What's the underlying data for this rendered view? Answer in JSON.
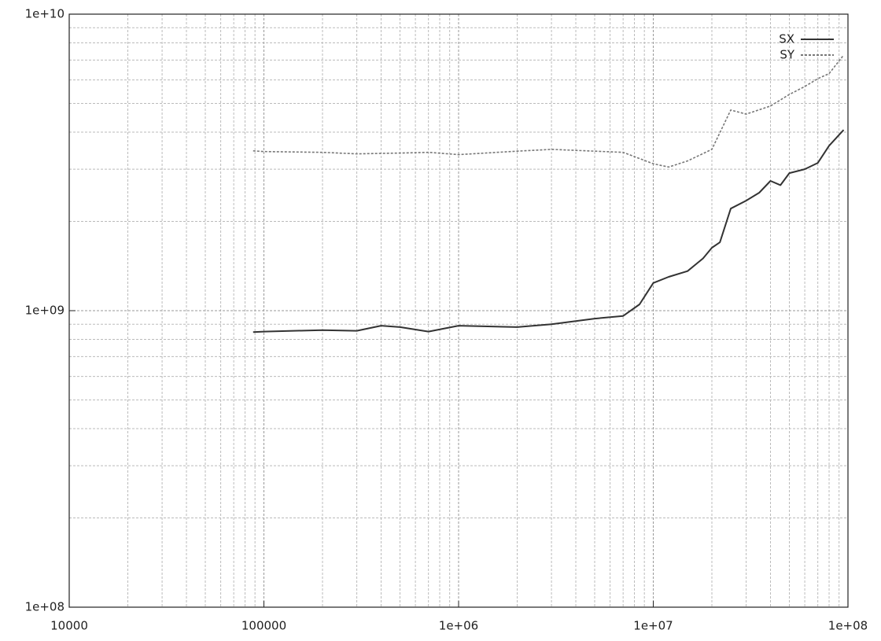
{
  "chart_data": {
    "type": "line",
    "log_x": true,
    "log_y": true,
    "grid": true,
    "legend": "top-right",
    "xlim": [
      10000,
      100000000
    ],
    "ylim": [
      100000000,
      10000000000
    ],
    "xticks": [
      10000,
      100000,
      {
        "value": 1000000,
        "label": "1e+06"
      },
      {
        "value": 10000000,
        "label": "1e+07"
      },
      {
        "value": 100000000,
        "label": "1e+08"
      }
    ],
    "yticks": [
      {
        "value": 100000000,
        "label": "1e+08"
      },
      {
        "value": 1000000000,
        "label": "1e+09"
      },
      {
        "value": 10000000000,
        "label": "1e+10"
      }
    ],
    "xminorticks": [
      20000,
      30000,
      40000,
      50000,
      60000,
      70000,
      80000,
      90000,
      200000,
      300000,
      400000,
      500000,
      600000,
      700000,
      800000,
      900000,
      2000000,
      3000000,
      4000000,
      5000000,
      6000000,
      7000000,
      8000000,
      9000000,
      20000000,
      30000000,
      40000000,
      50000000,
      60000000,
      70000000,
      80000000,
      90000000
    ],
    "yminorticks": [
      200000000,
      300000000,
      400000000,
      500000000,
      600000000,
      700000000,
      800000000,
      900000000,
      2000000000,
      3000000000,
      4000000000,
      5000000000,
      6000000000,
      7000000000,
      8000000000,
      9000000000
    ],
    "series": [
      {
        "name": "SX",
        "color": "#333333",
        "style": "solid",
        "x": [
          88000,
          100000,
          200000,
          300000,
          400000,
          500000,
          700000,
          1000000,
          2000000,
          3000000,
          5000000,
          7000000,
          8500000,
          10000000,
          12000000,
          15000000,
          18000000,
          20000000,
          22000000,
          25000000,
          30000000,
          35000000,
          40000000,
          45000000,
          50000000,
          60000000,
          70000000,
          80000000,
          95000000
        ],
        "values": [
          847000000,
          850000000,
          860000000,
          855000000,
          890000000,
          880000000,
          850000000,
          890000000,
          880000000,
          900000000,
          940000000,
          960000000,
          1050000000,
          1240000000,
          1300000000,
          1360000000,
          1500000000,
          1630000000,
          1700000000,
          2210000000,
          2350000000,
          2500000000,
          2740000000,
          2650000000,
          2910000000,
          3000000000,
          3150000000,
          3600000000,
          4070000000
        ]
      },
      {
        "name": "SY",
        "color": "#777777",
        "style": "dotted",
        "x": [
          88000,
          100000,
          200000,
          300000,
          500000,
          700000,
          1000000,
          2000000,
          3000000,
          5000000,
          7000000,
          10000000,
          12000000,
          15000000,
          20000000,
          25000000,
          30000000,
          40000000,
          50000000,
          60000000,
          70000000,
          80000000,
          95000000
        ],
        "values": [
          3460000000,
          3440000000,
          3420000000,
          3380000000,
          3400000000,
          3420000000,
          3360000000,
          3450000000,
          3500000000,
          3450000000,
          3420000000,
          3130000000,
          3050000000,
          3200000000,
          3500000000,
          4750000000,
          4600000000,
          4900000000,
          5360000000,
          5700000000,
          6060000000,
          6300000000,
          7280000000
        ]
      }
    ]
  }
}
